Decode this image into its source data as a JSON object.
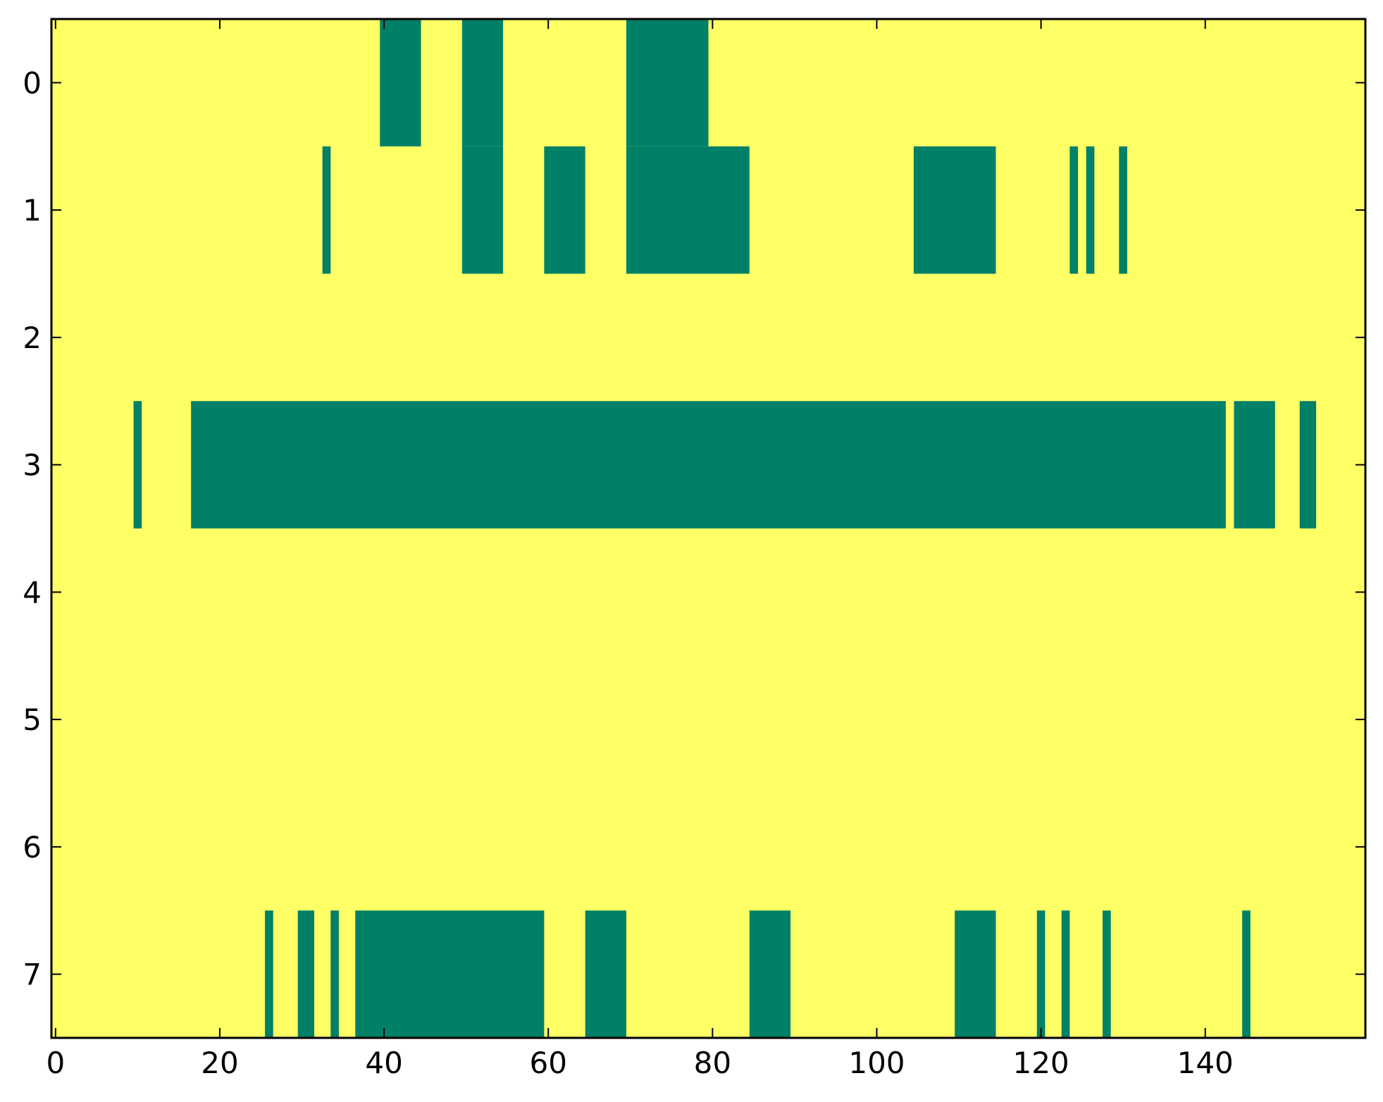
{
  "chart_data": {
    "type": "heatmap",
    "title": "",
    "xlabel": "",
    "ylabel": "",
    "xlim": [
      -0.5,
      159.5
    ],
    "ylim": [
      7.5,
      -0.5
    ],
    "grid": false,
    "colors": {
      "background": "#ffff66",
      "filled": "#008066",
      "axes": "#000000"
    },
    "x_ticks": [
      {
        "value": 0,
        "label": "0"
      },
      {
        "value": 20,
        "label": "20"
      },
      {
        "value": 40,
        "label": "40"
      },
      {
        "value": 60,
        "label": "60"
      },
      {
        "value": 80,
        "label": "80"
      },
      {
        "value": 100,
        "label": "100"
      },
      {
        "value": 120,
        "label": "120"
      },
      {
        "value": 140,
        "label": "140"
      }
    ],
    "y_ticks": [
      {
        "value": 0,
        "label": "0"
      },
      {
        "value": 1,
        "label": "1"
      },
      {
        "value": 2,
        "label": "2"
      },
      {
        "value": 3,
        "label": "3"
      },
      {
        "value": 4,
        "label": "4"
      },
      {
        "value": 5,
        "label": "5"
      },
      {
        "value": 6,
        "label": "6"
      },
      {
        "value": 7,
        "label": "7"
      }
    ],
    "cell_values": "1 = filled (green), 0 = empty (yellow); runs listed as inclusive column ranges",
    "rows": [
      {
        "row": 0,
        "filled_ranges": [
          [
            40,
            44
          ],
          [
            50,
            54
          ],
          [
            70,
            79
          ]
        ]
      },
      {
        "row": 1,
        "filled_ranges": [
          [
            33,
            33
          ],
          [
            50,
            54
          ],
          [
            60,
            64
          ],
          [
            70,
            84
          ],
          [
            105,
            114
          ],
          [
            124,
            124
          ],
          [
            126,
            126
          ],
          [
            130,
            130
          ]
        ]
      },
      {
        "row": 2,
        "filled_ranges": []
      },
      {
        "row": 3,
        "filled_ranges": [
          [
            10,
            10
          ],
          [
            17,
            142
          ],
          [
            144,
            148
          ],
          [
            152,
            153
          ]
        ]
      },
      {
        "row": 4,
        "filled_ranges": []
      },
      {
        "row": 5,
        "filled_ranges": []
      },
      {
        "row": 6,
        "filled_ranges": []
      },
      {
        "row": 7,
        "filled_ranges": [
          [
            26,
            26
          ],
          [
            30,
            31
          ],
          [
            34,
            34
          ],
          [
            37,
            59
          ],
          [
            65,
            69
          ],
          [
            85,
            89
          ],
          [
            110,
            114
          ],
          [
            120,
            120
          ],
          [
            123,
            123
          ],
          [
            128,
            128
          ],
          [
            145,
            145
          ]
        ]
      }
    ]
  }
}
